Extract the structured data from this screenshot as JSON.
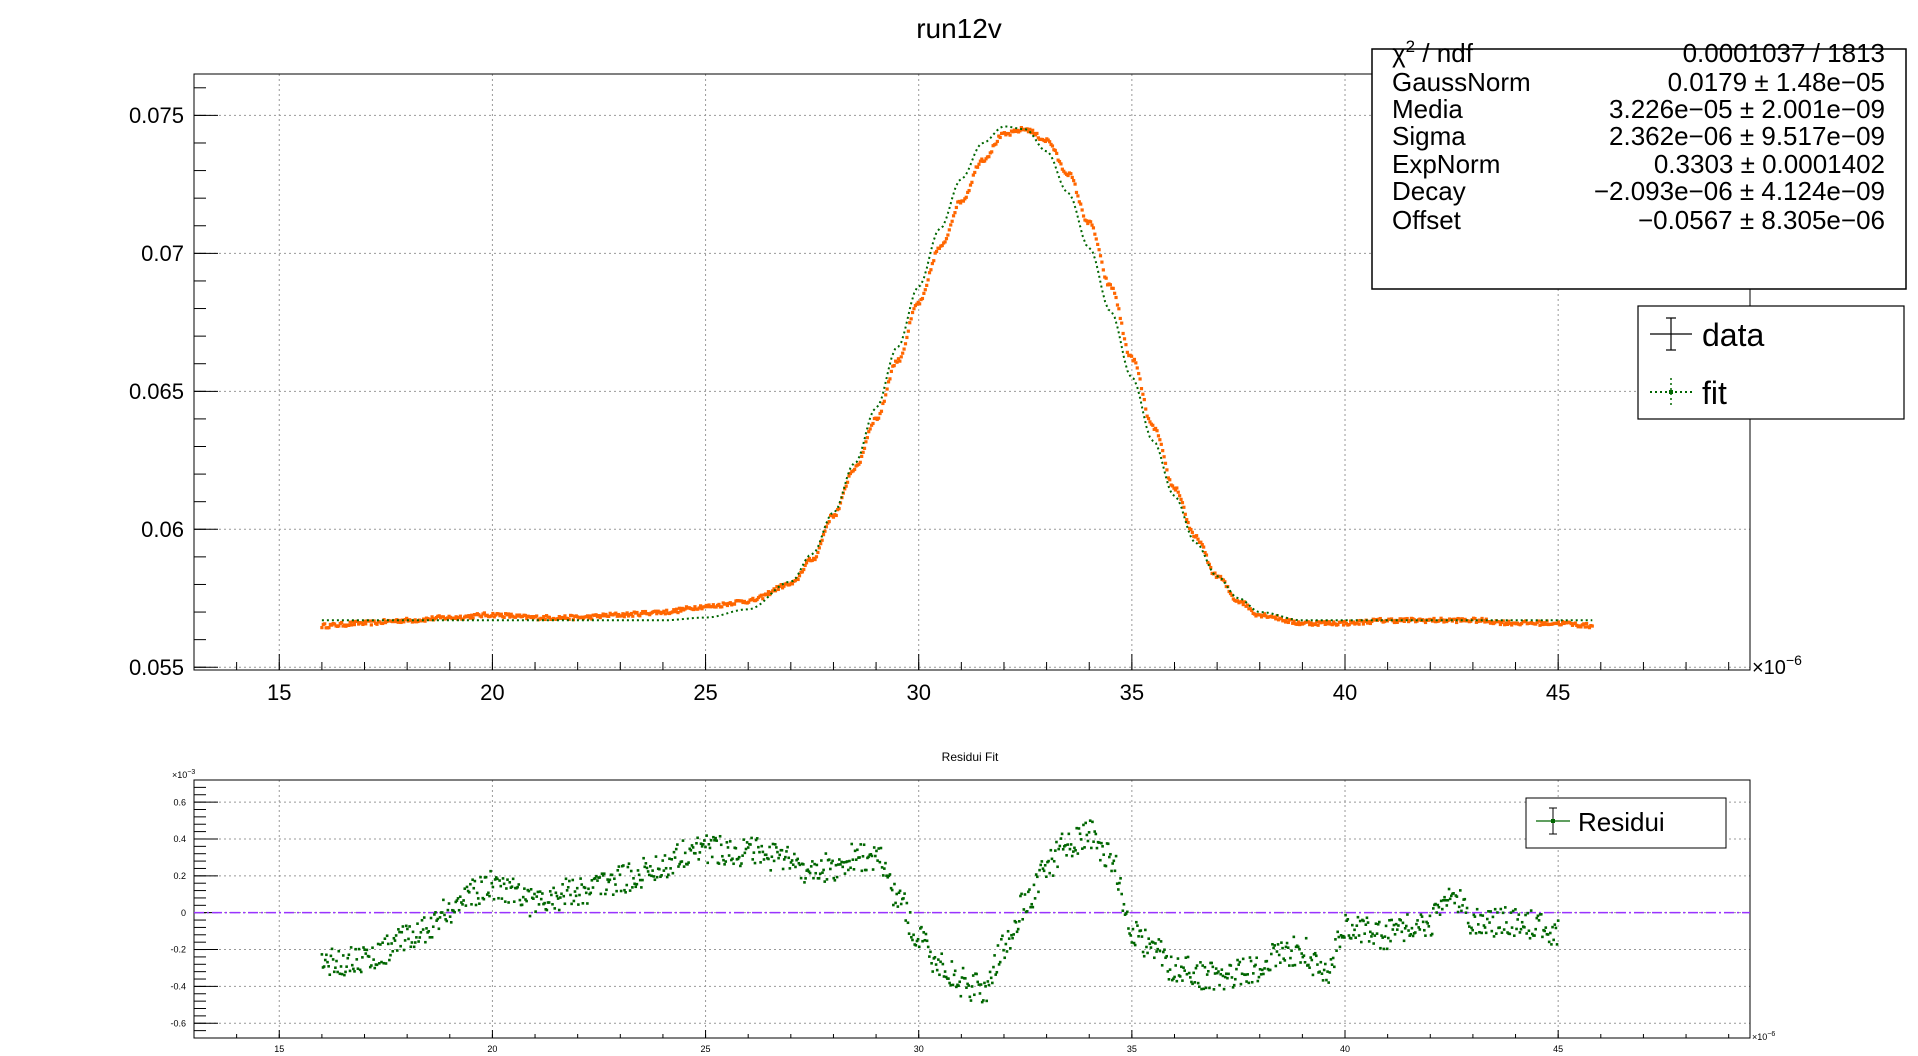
{
  "top_title": "run12v",
  "bottom_title": "Residui Fit",
  "top_exponent_label": "×10",
  "top_exponent_power": "−6",
  "bottom_x_exponent_label": "×10",
  "bottom_x_exponent_power": "−6",
  "bottom_y_exponent_label": "×10",
  "bottom_y_exponent_power": "−3",
  "stats_box": {
    "rows": [
      {
        "label_main": "χ",
        "label_sup": "2",
        "label_rest": " / ndf",
        "value": "0.0001037 / 1813"
      },
      {
        "label_main": "GaussNorm",
        "label_sup": "",
        "label_rest": "",
        "value": "0.0179 ± 1.48e−05"
      },
      {
        "label_main": "Media",
        "label_sup": "",
        "label_rest": "",
        "value": "3.226e−05 ± 2.001e−09"
      },
      {
        "label_main": "Sigma",
        "label_sup": "",
        "label_rest": "",
        "value": "2.362e−06 ± 9.517e−09"
      },
      {
        "label_main": "ExpNorm",
        "label_sup": "",
        "label_rest": "",
        "value": "0.3303 ± 0.0001402"
      },
      {
        "label_main": "Decay",
        "label_sup": "",
        "label_rest": "",
        "value": "−2.093e−06 ± 4.124e−09"
      },
      {
        "label_main": "Offset",
        "label_sup": "",
        "label_rest": "",
        "value": "−0.0567 ± 8.305e−06"
      }
    ]
  },
  "colors": {
    "data": "#ff6600",
    "fit": "#006600",
    "residual_points": "#006600",
    "zero_line": "#9933ff",
    "grid": "#999999",
    "axis": "#000000"
  },
  "chart_data": [
    {
      "type": "scatter",
      "title": "run12v",
      "xlabel": "",
      "ylabel": "",
      "x_scale_note": "×10^-6",
      "xlim": [
        13,
        49.5
      ],
      "ylim": [
        0.0549,
        0.0765
      ],
      "xticks": [
        "15",
        "20",
        "25",
        "30",
        "35",
        "40",
        "45"
      ],
      "yticks": [
        "0.055",
        "0.06",
        "0.065",
        "0.07",
        "0.075"
      ],
      "grid": true,
      "legend": {
        "placement": "right",
        "entries": [
          "data",
          "fit"
        ]
      },
      "series": [
        {
          "name": "data",
          "style": "markers",
          "x": [
            16,
            17,
            18,
            19,
            20,
            21,
            22,
            23,
            24,
            25,
            26,
            27,
            27.5,
            28,
            28.5,
            29,
            29.5,
            30,
            30.5,
            31,
            31.5,
            32,
            32.5,
            33,
            33.5,
            34,
            34.5,
            35,
            35.5,
            36,
            36.5,
            37,
            37.5,
            38,
            39,
            40,
            41,
            42,
            43,
            44,
            45,
            45.8
          ],
          "y": [
            0.0565,
            0.0566,
            0.0567,
            0.0568,
            0.0569,
            0.0568,
            0.0568,
            0.0569,
            0.057,
            0.0572,
            0.0574,
            0.058,
            0.0589,
            0.0605,
            0.0622,
            0.064,
            0.0661,
            0.0682,
            0.0702,
            0.0719,
            0.0734,
            0.0743,
            0.0745,
            0.0741,
            0.0729,
            0.0711,
            0.0688,
            0.0662,
            0.0637,
            0.0615,
            0.0597,
            0.0583,
            0.0574,
            0.0569,
            0.0566,
            0.0566,
            0.0567,
            0.0567,
            0.0567,
            0.0566,
            0.0566,
            0.0565
          ]
        },
        {
          "name": "fit",
          "style": "dotted line",
          "x": [
            16,
            17,
            18,
            19,
            20,
            21,
            22,
            23,
            24,
            25,
            26,
            27,
            27.5,
            28,
            28.5,
            29,
            29.5,
            30,
            30.5,
            31,
            31.5,
            32,
            32.5,
            33,
            33.5,
            34,
            34.5,
            35,
            35.5,
            36,
            36.5,
            37,
            37.5,
            38,
            39,
            40,
            41,
            42,
            43,
            44,
            45,
            45.8
          ],
          "y": [
            0.0567,
            0.0567,
            0.0567,
            0.0567,
            0.0567,
            0.0567,
            0.0567,
            0.0567,
            0.0567,
            0.0568,
            0.0571,
            0.0581,
            0.0591,
            0.0606,
            0.0624,
            0.0644,
            0.0666,
            0.0688,
            0.0709,
            0.0727,
            0.074,
            0.0746,
            0.0745,
            0.0737,
            0.0722,
            0.0702,
            0.0679,
            0.0655,
            0.0632,
            0.0612,
            0.0595,
            0.0583,
            0.0575,
            0.057,
            0.0567,
            0.0567,
            0.0567,
            0.0567,
            0.0567,
            0.0567,
            0.0567,
            0.0567
          ]
        }
      ]
    },
    {
      "type": "scatter",
      "title": "Residui Fit",
      "xlabel": "",
      "ylabel": "",
      "x_scale_note": "×10^-6",
      "y_scale_note": "×10^-3",
      "xlim": [
        13,
        49.5
      ],
      "ylim": [
        -0.68,
        0.72
      ],
      "xticks": [
        "15",
        "20",
        "25",
        "30",
        "35",
        "40",
        "45"
      ],
      "yticks": [
        "-0.6",
        "-0.4",
        "-0.2",
        "0",
        "0.2",
        "0.4",
        "0.6"
      ],
      "grid": true,
      "reference_line": 0,
      "legend": {
        "placement": "top-right",
        "entries": [
          "Residui"
        ]
      },
      "series": [
        {
          "name": "Residui",
          "x": [
            16,
            17,
            18,
            18.5,
            19,
            19.5,
            20,
            20.5,
            21,
            22,
            23,
            24,
            24.5,
            25,
            26,
            27,
            27.5,
            28,
            28.5,
            29,
            29.5,
            30,
            30.5,
            31,
            31.5,
            32,
            32.5,
            33,
            33.5,
            34,
            34.5,
            35,
            35.5,
            36,
            37,
            38,
            38.5,
            39,
            39.5,
            40,
            41,
            42,
            42.5,
            43,
            44,
            45
          ],
          "y": [
            -0.27,
            -0.25,
            -0.15,
            -0.08,
            0.02,
            0.1,
            0.15,
            0.13,
            0.05,
            0.12,
            0.18,
            0.25,
            0.33,
            0.35,
            0.33,
            0.28,
            0.22,
            0.25,
            0.3,
            0.3,
            0.1,
            -0.15,
            -0.28,
            -0.38,
            -0.42,
            -0.2,
            0.05,
            0.25,
            0.38,
            0.42,
            0.3,
            -0.1,
            -0.2,
            -0.3,
            -0.35,
            -0.3,
            -0.22,
            -0.2,
            -0.35,
            -0.08,
            -0.12,
            -0.05,
            0.1,
            -0.05,
            -0.05,
            -0.1
          ]
        }
      ]
    }
  ]
}
